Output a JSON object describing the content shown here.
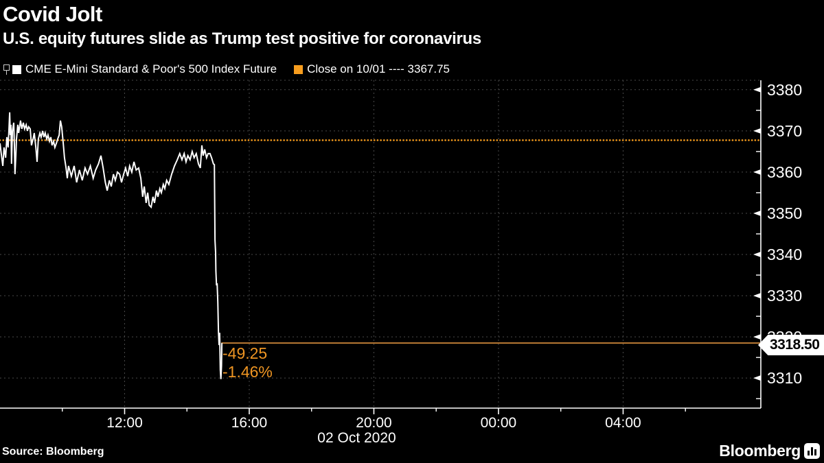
{
  "header": {
    "title": "Covid Jolt",
    "subtitle": "U.S. equity futures slide as Trump test positive for coronavirus"
  },
  "legend": {
    "series_label": "CME E-Mini Standard & Poor's 500 Index Future",
    "series_swatch_color": "#ffffff",
    "reference_label": "Close on 10/01 ---- 3367.75",
    "reference_swatch_color": "#f79d1e"
  },
  "colors": {
    "background": "#000000",
    "series": "#ffffff",
    "grid": "#4a4a4a",
    "axis": "#ffffff",
    "close_line": "#f79d1e",
    "last_price_line": "#bd7c35",
    "annotation": "#ee9523"
  },
  "chart_data": {
    "type": "line",
    "title": "Covid Jolt",
    "subtitle": "U.S. equity futures slide as Trump test positive for coronavirus",
    "series": [
      {
        "name": "CME E-Mini Standard & Poor's 500 Index Future",
        "color": "#ffffff",
        "points": [
          [
            8.0,
            3367
          ],
          [
            8.04,
            3364.5
          ],
          [
            8.09,
            3361.5
          ],
          [
            8.13,
            3366
          ],
          [
            8.18,
            3363.5
          ],
          [
            8.22,
            3368.5
          ],
          [
            8.26,
            3366
          ],
          [
            8.29,
            3371
          ],
          [
            8.31,
            3374.5
          ],
          [
            8.33,
            3369
          ],
          [
            8.35,
            3371.5
          ],
          [
            8.37,
            3362
          ],
          [
            8.4,
            3370
          ],
          [
            8.44,
            3372
          ],
          [
            8.46,
            3367
          ],
          [
            8.48,
            3359.5
          ],
          [
            8.51,
            3364
          ],
          [
            8.53,
            3368
          ],
          [
            8.57,
            3371.5
          ],
          [
            8.6,
            3369.5
          ],
          [
            8.62,
            3370.5
          ],
          [
            8.66,
            3372.5
          ],
          [
            8.7,
            3370.5
          ],
          [
            8.75,
            3372
          ],
          [
            8.79,
            3370.5
          ],
          [
            8.84,
            3371.5
          ],
          [
            8.88,
            3370
          ],
          [
            8.92,
            3371
          ],
          [
            8.97,
            3370.5
          ],
          [
            9.01,
            3366.5
          ],
          [
            9.06,
            3368
          ],
          [
            9.1,
            3369.5
          ],
          [
            9.15,
            3366
          ],
          [
            9.19,
            3362.5
          ],
          [
            9.23,
            3368
          ],
          [
            9.28,
            3369.5
          ],
          [
            9.32,
            3368.5
          ],
          [
            9.37,
            3370
          ],
          [
            9.41,
            3368.5
          ],
          [
            9.45,
            3369.5
          ],
          [
            9.5,
            3368
          ],
          [
            9.54,
            3369
          ],
          [
            9.59,
            3367.5
          ],
          [
            9.63,
            3368.5
          ],
          [
            9.67,
            3366.5
          ],
          [
            9.72,
            3367.5
          ],
          [
            9.76,
            3366
          ],
          [
            9.81,
            3367
          ],
          [
            9.85,
            3368
          ],
          [
            9.9,
            3369
          ],
          [
            9.94,
            3372.5
          ],
          [
            9.98,
            3371
          ],
          [
            10.03,
            3367
          ],
          [
            10.07,
            3363.5
          ],
          [
            10.12,
            3361
          ],
          [
            10.16,
            3358.5
          ],
          [
            10.2,
            3361.5
          ],
          [
            10.29,
            3359
          ],
          [
            10.38,
            3361.5
          ],
          [
            10.46,
            3357.5
          ],
          [
            10.55,
            3360.5
          ],
          [
            10.64,
            3358
          ],
          [
            10.73,
            3361
          ],
          [
            10.81,
            3359.5
          ],
          [
            10.9,
            3361.5
          ],
          [
            10.99,
            3358.5
          ],
          [
            11.07,
            3360.5
          ],
          [
            11.16,
            3362
          ],
          [
            11.24,
            3364
          ],
          [
            11.31,
            3361
          ],
          [
            11.38,
            3357.5
          ],
          [
            11.44,
            3355.5
          ],
          [
            11.51,
            3358
          ],
          [
            11.57,
            3356.5
          ],
          [
            11.64,
            3359.5
          ],
          [
            11.7,
            3358
          ],
          [
            11.77,
            3360
          ],
          [
            11.84,
            3359.5
          ],
          [
            11.9,
            3357.5
          ],
          [
            11.97,
            3359.5
          ],
          [
            12.03,
            3361
          ],
          [
            12.1,
            3359
          ],
          [
            12.16,
            3361.5
          ],
          [
            12.23,
            3360
          ],
          [
            12.3,
            3362.5
          ],
          [
            12.37,
            3360.5
          ],
          [
            12.45,
            3361
          ],
          [
            12.52,
            3358.5
          ],
          [
            12.58,
            3354
          ],
          [
            12.63,
            3356.5
          ],
          [
            12.69,
            3352.5
          ],
          [
            12.74,
            3355
          ],
          [
            12.79,
            3352
          ],
          [
            12.85,
            3351.5
          ],
          [
            12.91,
            3354
          ],
          [
            12.96,
            3352.5
          ],
          [
            13.02,
            3355.5
          ],
          [
            13.07,
            3354
          ],
          [
            13.13,
            3356
          ],
          [
            13.18,
            3355
          ],
          [
            13.24,
            3357
          ],
          [
            13.29,
            3356
          ],
          [
            13.35,
            3358
          ],
          [
            13.42,
            3357
          ],
          [
            13.51,
            3359.5
          ],
          [
            13.6,
            3361.5
          ],
          [
            13.69,
            3363
          ],
          [
            13.77,
            3364.5
          ],
          [
            13.84,
            3363
          ],
          [
            13.91,
            3364.5
          ],
          [
            13.97,
            3362.5
          ],
          [
            14.03,
            3364
          ],
          [
            14.1,
            3363
          ],
          [
            14.17,
            3365
          ],
          [
            14.23,
            3363.5
          ],
          [
            14.3,
            3364.5
          ],
          [
            14.37,
            3362
          ],
          [
            14.43,
            3361
          ],
          [
            14.48,
            3366.5
          ],
          [
            14.52,
            3364
          ],
          [
            14.57,
            3365.5
          ],
          [
            14.63,
            3363.5
          ],
          [
            14.68,
            3364.5
          ],
          [
            14.74,
            3364.5
          ],
          [
            14.79,
            3363.5
          ],
          [
            14.85,
            3362
          ],
          [
            14.88,
            3361.8
          ],
          [
            14.9,
            3343.5
          ],
          [
            14.92,
            3340.5
          ],
          [
            14.93,
            3336
          ],
          [
            14.95,
            3332.5
          ],
          [
            14.97,
            3333
          ],
          [
            14.99,
            3328.5
          ],
          [
            15.01,
            3321.5
          ],
          [
            15.03,
            3318
          ],
          [
            15.05,
            3321
          ],
          [
            15.07,
            3312
          ],
          [
            15.09,
            3309.75
          ],
          [
            15.11,
            3313
          ],
          [
            15.12,
            3318.5
          ]
        ]
      }
    ],
    "reference_lines": [
      {
        "name": "close-10-01",
        "value": 3367.75,
        "style": "dotted",
        "color": "#f79d1e",
        "from_hour": 8,
        "to_hour": 32.42
      },
      {
        "name": "last-price",
        "value": 3318.5,
        "style": "solid",
        "color": "#bd7c35",
        "from_hour": 15.1,
        "to_hour": 32.42
      }
    ],
    "y_axis": {
      "side": "right",
      "range": [
        3302.7,
        3382.3
      ],
      "major_ticks": [
        3380,
        3370,
        3360,
        3350,
        3340,
        3330,
        3320,
        3310
      ],
      "minor_ticks": [
        3375,
        3365,
        3355,
        3345,
        3335,
        3325,
        3315,
        3305
      ]
    },
    "x_axis": {
      "unit": "hours-from-01-oct-00:00",
      "range_hours": [
        8,
        32.42
      ],
      "major_ticks": [
        {
          "hour": 12,
          "label": "12:00"
        },
        {
          "hour": 16,
          "label": "16:00"
        },
        {
          "hour": 20,
          "label": "20:00"
        },
        {
          "hour": 24,
          "label": "00:00"
        },
        {
          "hour": 28,
          "label": "04:00"
        }
      ],
      "minor_tick_hours": [
        10,
        14,
        18,
        22,
        26,
        30
      ],
      "date_label": "02 Oct 2020",
      "date_label_hour": 19.45
    },
    "grid": {
      "horizontal": true,
      "vertical": true,
      "top_border_dashed": true
    },
    "annotations": [
      {
        "text": "-49.25",
        "meaning": "net change",
        "anchor_hour": 15.2,
        "anchor_price": 3317
      },
      {
        "text": "-1.46%",
        "meaning": "percent change",
        "anchor_hour": 15.2,
        "anchor_price": 3312.5
      }
    ],
    "last_price": {
      "label": "3318.50",
      "value": 3318.5
    }
  },
  "price_flag": {
    "label": "3318.50"
  },
  "annotations": {
    "change": "-49.25",
    "percent": "-1.46%"
  },
  "footer": {
    "source": "Source:  Bloomberg",
    "brand": "Bloomberg"
  }
}
